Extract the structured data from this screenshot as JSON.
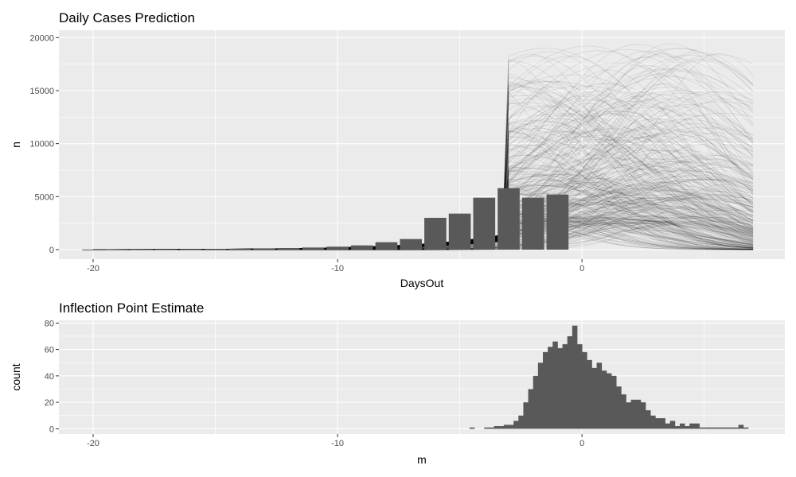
{
  "colors": {
    "panel_bg": "#ebebeb",
    "grid_major": "#ffffff",
    "bar_fill": "#595959",
    "line_color": "#000000"
  },
  "chart_data": [
    {
      "type": "bar",
      "title": "Daily Cases Prediction",
      "xlabel": "DaysOut",
      "ylabel": "n",
      "xlim": [
        -21.4,
        8.3
      ],
      "ylim": [
        -900,
        20700
      ],
      "x_ticks": [
        -20,
        -10,
        0
      ],
      "x_tick_labels": [
        "-20",
        "-10",
        "0"
      ],
      "y_ticks": [
        0,
        5000,
        10000,
        15000,
        20000
      ],
      "y_tick_labels": [
        "0",
        "5000",
        "10000",
        "15000",
        "20000"
      ],
      "grid": true,
      "bars": {
        "x": [
          -20,
          -19,
          -18,
          -17,
          -16,
          -15,
          -14,
          -13,
          -12,
          -11,
          -10,
          -9,
          -8,
          -7,
          -6,
          -5,
          -4,
          -3,
          -2,
          -1
        ],
        "values": [
          10,
          20,
          30,
          40,
          50,
          60,
          80,
          100,
          150,
          200,
          280,
          400,
          700,
          1000,
          3000,
          3400,
          4900,
          5800,
          4900,
          5200
        ]
      },
      "simulated_curves": {
        "description_count": 400,
        "x_range": [
          -20,
          7
        ],
        "peak_day_range": [
          -4,
          6
        ],
        "peak_value_range": [
          2500,
          19500
        ]
      }
    },
    {
      "type": "bar",
      "title": "Inflection Point Estimate",
      "xlabel": "m",
      "ylabel": "count",
      "xlim": [
        -21.4,
        8.3
      ],
      "ylim": [
        -4,
        82
      ],
      "x_ticks": [
        -20,
        -10,
        0
      ],
      "x_tick_labels": [
        "-20",
        "-10",
        "0"
      ],
      "y_ticks": [
        0,
        20,
        40,
        60,
        80
      ],
      "y_tick_labels": [
        "0",
        "20",
        "40",
        "60",
        "80"
      ],
      "grid": true,
      "bin_width": 0.2,
      "bins": {
        "x": [
          -4.5,
          -3.9,
          -3.7,
          -3.5,
          -3.3,
          -3.1,
          -2.9,
          -2.7,
          -2.5,
          -2.3,
          -2.1,
          -1.9,
          -1.7,
          -1.5,
          -1.3,
          -1.1,
          -0.9,
          -0.7,
          -0.5,
          -0.3,
          -0.1,
          0.1,
          0.3,
          0.5,
          0.7,
          0.9,
          1.1,
          1.3,
          1.5,
          1.7,
          1.9,
          2.1,
          2.3,
          2.5,
          2.7,
          2.9,
          3.1,
          3.3,
          3.5,
          3.7,
          3.9,
          4.1,
          4.3,
          4.5,
          4.7,
          4.9,
          5.1,
          5.3,
          5.5,
          5.7,
          5.9,
          6.1,
          6.3,
          6.5,
          6.7
        ],
        "counts": [
          1,
          1,
          1,
          2,
          2,
          3,
          3,
          6,
          10,
          20,
          30,
          40,
          50,
          58,
          62,
          66,
          61,
          64,
          70,
          78,
          64,
          58,
          52,
          46,
          50,
          44,
          42,
          40,
          32,
          26,
          20,
          22,
          22,
          20,
          14,
          10,
          8,
          8,
          4,
          6,
          2,
          4,
          2,
          4,
          4,
          1,
          1,
          1,
          1,
          1,
          1,
          1,
          1,
          3,
          1
        ]
      }
    }
  ]
}
